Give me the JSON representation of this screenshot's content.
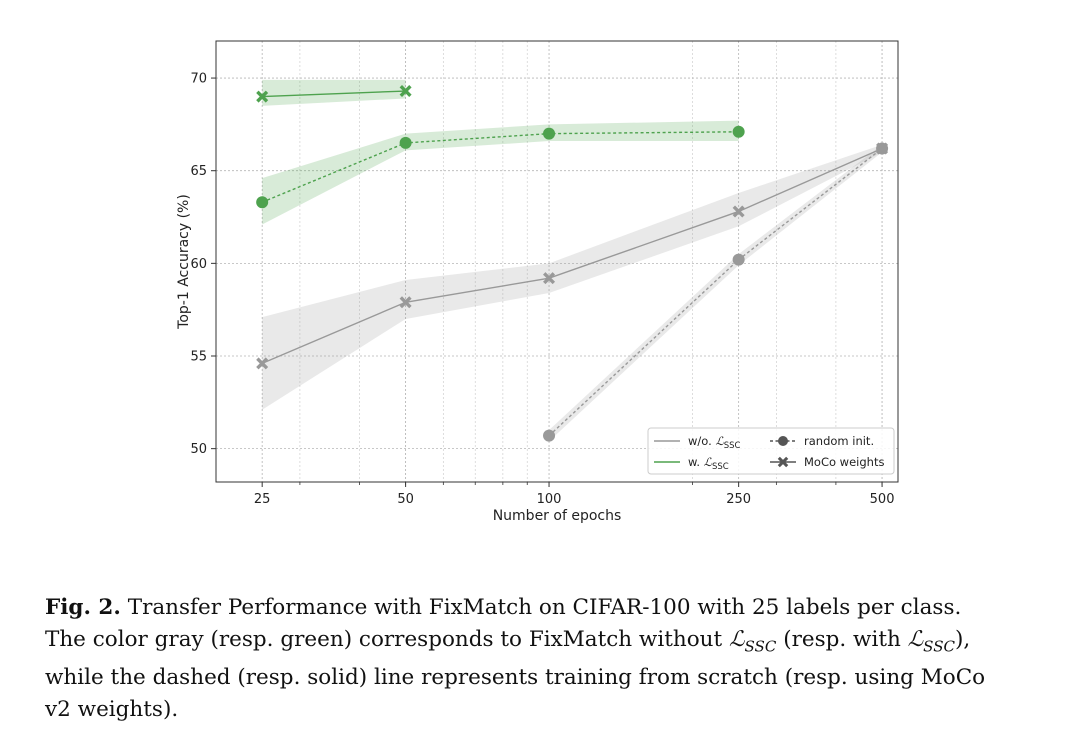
{
  "chart_data": {
    "type": "line",
    "xlabel": "Number of epochs",
    "ylabel": "Top-1 Accuracy (%)",
    "xscale": "log",
    "xlim": [
      20,
      540
    ],
    "ylim": [
      48.2,
      72
    ],
    "xticks": [
      25,
      50,
      100,
      250,
      500
    ],
    "yticks": [
      50,
      55,
      60,
      65,
      70
    ],
    "grid": true,
    "legend_position": "lower-right",
    "legend": [
      {
        "label": "w/o. ℒSSC",
        "main": "w/o. ",
        "script": "ℒ",
        "sub": "SSC",
        "kind": "line",
        "color": "#999999"
      },
      {
        "label": "w. ℒSSC",
        "main": "w. ",
        "script": "ℒ",
        "sub": "SSC",
        "kind": "line",
        "color": "#4ea24e"
      },
      {
        "label": "random init.",
        "kind": "dashed-dot",
        "color": "#555555"
      },
      {
        "label": "MoCo weights",
        "kind": "solid-x",
        "color": "#555555"
      }
    ],
    "series": [
      {
        "name": "w/o. LSSC, MoCo weights",
        "color": "#999999",
        "marker": "x",
        "dashed": false,
        "x": [
          25,
          50,
          100,
          250,
          500
        ],
        "y": [
          54.6,
          57.9,
          59.2,
          62.8,
          66.2
        ],
        "band_lo": [
          52.1,
          57.0,
          58.4,
          62.0,
          66.0
        ],
        "band_hi": [
          57.1,
          59.1,
          60.0,
          63.8,
          66.4
        ]
      },
      {
        "name": "w/o. LSSC, random init.",
        "color": "#999999",
        "marker": "o",
        "dashed": true,
        "x": [
          100,
          250,
          500
        ],
        "y": [
          50.7,
          60.2,
          66.2
        ],
        "band_lo": [
          50.4,
          59.9,
          66.0
        ],
        "band_hi": [
          51.0,
          60.5,
          66.4
        ]
      },
      {
        "name": "w. LSSC, random init.",
        "color": "#4ea24e",
        "marker": "o",
        "dashed": true,
        "x": [
          25,
          50,
          100,
          250
        ],
        "y": [
          63.3,
          66.5,
          67.0,
          67.1
        ],
        "band_lo": [
          62.1,
          66.1,
          66.6,
          66.6
        ],
        "band_hi": [
          64.6,
          67.0,
          67.5,
          67.7
        ]
      },
      {
        "name": "w. LSSC, MoCo weights",
        "color": "#4ea24e",
        "marker": "x",
        "dashed": false,
        "x": [
          25,
          50
        ],
        "y": [
          69.0,
          69.3
        ],
        "band_lo": [
          68.5,
          68.9
        ],
        "band_hi": [
          69.9,
          69.9
        ]
      }
    ]
  },
  "caption": {
    "label": "Fig. 2.",
    "line1": "Transfer Performance with FixMatch on CIFAR-100 with 25 labels per class.",
    "line2a": "The color gray (resp. green) corresponds to FixMatch without",
    "line2b": "(resp. with",
    "line2c": "),",
    "math_main": "ℒ",
    "math_sub": "SSC",
    "line3": "while the dashed (resp. solid) line represents training from scratch (resp. using MoCo",
    "line4": "v2 weights)."
  }
}
